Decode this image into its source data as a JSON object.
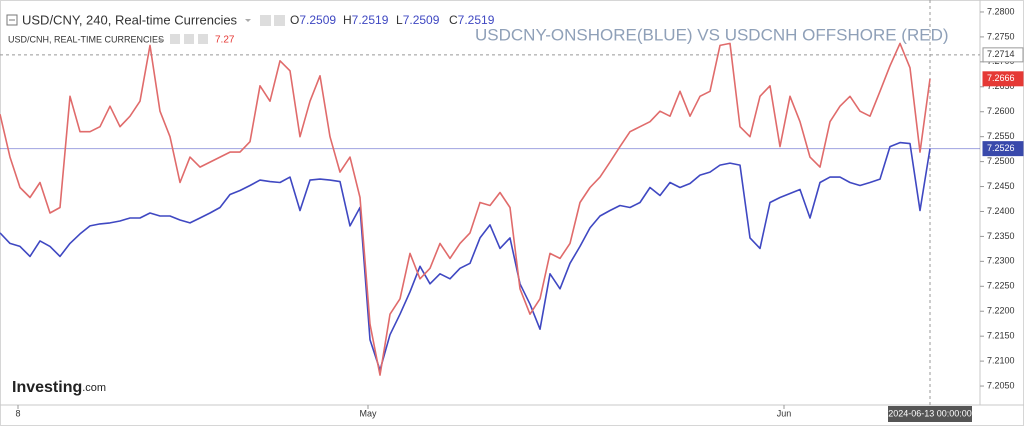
{
  "chart_data": {
    "type": "line",
    "symbol": "USD/CNY, 240, Real-time Currencies",
    "ohlc": [
      {
        "label": "O",
        "value": 7.2509
      },
      {
        "label": "H",
        "value": 7.2519
      },
      {
        "label": "L",
        "value": 7.2509
      },
      {
        "label": "C",
        "value": 7.2519
      }
    ],
    "overlay_symbol": "USD/CNH, REAL-TIME CURRENCIES",
    "overlay_value": 7.27,
    "title": "USDCNY-ONSHORE(BLUE) VS USDCNH OFFSHORE (RED)",
    "logo": {
      "main": "Investing",
      "suffix": ".com"
    },
    "x": [
      0,
      1,
      2,
      3,
      4,
      5,
      6,
      7,
      8,
      9,
      10,
      11,
      12,
      13,
      14,
      15,
      16,
      17,
      18,
      19,
      20,
      21,
      22,
      23,
      24,
      25,
      26,
      27,
      28,
      29,
      30,
      31,
      32,
      33,
      34,
      35,
      36,
      37,
      38,
      39,
      40,
      41,
      42,
      43,
      44,
      45,
      46,
      47,
      48,
      49,
      50,
      51,
      52,
      53,
      54,
      55,
      56,
      57,
      58,
      59,
      60,
      61,
      62,
      63,
      64,
      65,
      66,
      67,
      68,
      69,
      70,
      71,
      72,
      73,
      74,
      75,
      76,
      77,
      78,
      79,
      80,
      81,
      82,
      83,
      84,
      85,
      86,
      87,
      88,
      89,
      90,
      91,
      92,
      93
    ],
    "series": [
      {
        "name": "USD/CNY",
        "color": "#3f48c2",
        "values": [
          7.2357,
          7.2336,
          7.233,
          7.231,
          7.2341,
          7.233,
          7.231,
          7.2336,
          7.2355,
          7.2371,
          7.2375,
          7.2377,
          7.2381,
          7.2387,
          7.2387,
          7.2397,
          7.2391,
          7.2391,
          7.2383,
          7.2377,
          7.2387,
          7.2397,
          7.2408,
          7.2434,
          7.2442,
          7.2452,
          7.2463,
          7.246,
          7.2458,
          7.2469,
          7.2402,
          7.2463,
          7.2465,
          7.2463,
          7.246,
          7.2371,
          7.2408,
          7.2143,
          7.2082,
          7.2153,
          7.2194,
          7.2239,
          7.229,
          7.2255,
          7.2275,
          7.2265,
          7.2286,
          7.2296,
          7.2347,
          7.2373,
          7.2326,
          7.2347,
          7.2255,
          7.2214,
          7.2164,
          7.2275,
          7.2245,
          7.2296,
          7.233,
          7.2367,
          7.2391,
          7.2402,
          7.2412,
          7.2408,
          7.2418,
          7.2448,
          7.2432,
          7.2458,
          7.2448,
          7.2456,
          7.2473,
          7.2479,
          7.2493,
          7.2497,
          7.2493,
          7.2347,
          7.2326,
          7.2418,
          7.2428,
          7.2436,
          7.2444,
          7.2387,
          7.2458,
          7.2469,
          7.2469,
          7.2458,
          7.2452,
          7.2458,
          7.2465,
          7.253,
          7.2538,
          7.2536,
          7.2402,
          7.2526
        ]
      },
      {
        "name": "USD/CNH",
        "color": "#e06b6b",
        "values": [
          7.2595,
          7.2509,
          7.2448,
          7.2428,
          7.2458,
          7.2397,
          7.2408,
          7.2631,
          7.256,
          7.256,
          7.257,
          7.2611,
          7.257,
          7.2591,
          7.2621,
          7.2733,
          7.2601,
          7.255,
          7.2458,
          7.2509,
          7.2489,
          7.2499,
          7.2509,
          7.2519,
          7.2519,
          7.254,
          7.2652,
          7.2621,
          7.2702,
          7.2682,
          7.255,
          7.2621,
          7.2672,
          7.255,
          7.2479,
          7.2509,
          7.2428,
          7.2174,
          7.2072,
          7.2194,
          7.2225,
          7.2316,
          7.2265,
          7.2286,
          7.2336,
          7.2306,
          7.2336,
          7.2357,
          7.2418,
          7.2412,
          7.2438,
          7.2408,
          7.2245,
          7.2194,
          7.2225,
          7.2316,
          7.2306,
          7.2336,
          7.2418,
          7.2448,
          7.2469,
          7.2499,
          7.253,
          7.256,
          7.257,
          7.258,
          7.2601,
          7.2591,
          7.2641,
          7.2591,
          7.2631,
          7.2641,
          7.2733,
          7.2737,
          7.257,
          7.255,
          7.2631,
          7.2652,
          7.253,
          7.2631,
          7.258,
          7.2509,
          7.2489,
          7.258,
          7.2611,
          7.2631,
          7.2601,
          7.2591,
          7.2641,
          7.2692,
          7.2737,
          7.2688,
          7.2519,
          7.2666
        ]
      }
    ],
    "xlim": [
      0,
      98
    ],
    "xticks": [
      {
        "value": 1.8,
        "label": "8"
      },
      {
        "value": 36.8,
        "label": "May"
      },
      {
        "value": 78.4,
        "label": "Jun"
      }
    ],
    "ylim": [
      7.2012,
      7.2824
    ],
    "yticks": [
      {
        "value": 7.205,
        "label": "7.2050"
      },
      {
        "value": 7.21,
        "label": "7.2100"
      },
      {
        "value": 7.215,
        "label": "7.2150"
      },
      {
        "value": 7.22,
        "label": "7.2200"
      },
      {
        "value": 7.225,
        "label": "7.2250"
      },
      {
        "value": 7.23,
        "label": "7.2300"
      },
      {
        "value": 7.235,
        "label": "7.2350"
      },
      {
        "value": 7.24,
        "label": "7.2400"
      },
      {
        "value": 7.245,
        "label": "7.2450"
      },
      {
        "value": 7.25,
        "label": "7.2500"
      },
      {
        "value": 7.255,
        "label": "7.2550"
      },
      {
        "value": 7.26,
        "label": "7.2600"
      },
      {
        "value": 7.265,
        "label": "7.2650"
      },
      {
        "value": 7.27,
        "label": "7.2700"
      },
      {
        "value": 7.275,
        "label": "7.2750"
      },
      {
        "value": 7.28,
        "label": "7.2800"
      }
    ],
    "crosshair": {
      "x": 93,
      "x_label": "2024-06-13 00:00:00",
      "y": 7.2714
    }
  }
}
